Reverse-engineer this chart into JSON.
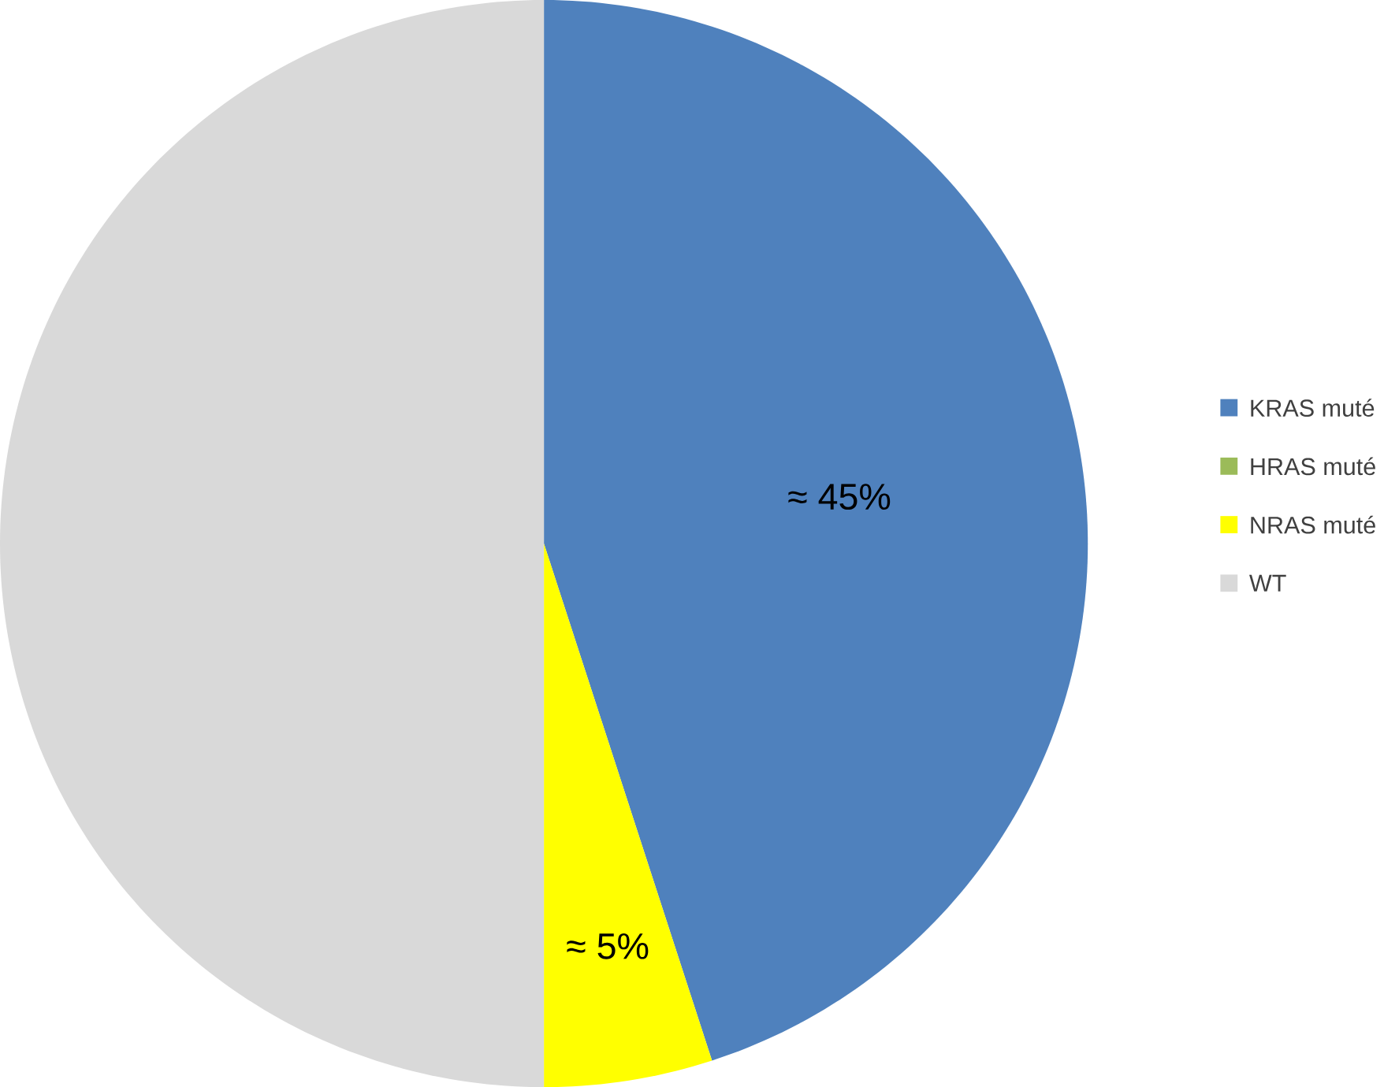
{
  "chart_data": {
    "type": "pie",
    "categories": [
      "KRAS muté",
      "HRAS muté",
      "NRAS muté",
      "WT"
    ],
    "values": [
      45,
      0,
      5,
      50
    ],
    "colors": [
      "#4f81bd",
      "#9bbb59",
      "#ffff00",
      "#d9d9d9"
    ],
    "value_labels": [
      "≈ 45%",
      null,
      "≈ 5%",
      null
    ],
    "legend": "right"
  }
}
